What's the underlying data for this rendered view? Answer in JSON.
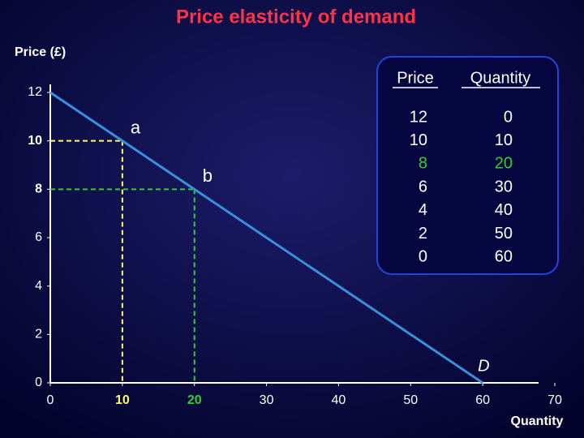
{
  "chart_data": {
    "type": "line",
    "title": "Price elasticity of demand",
    "y_label": "Price (£)",
    "x_label": "Quantity",
    "x": [
      0,
      10,
      20,
      30,
      40,
      50,
      60
    ],
    "values": [
      12,
      10,
      8,
      6,
      4,
      2,
      0
    ],
    "color": "#3a8fdc",
    "curve_label": "D",
    "xlim": [
      0,
      70
    ],
    "ylim": [
      0,
      12
    ],
    "xticks": [
      0,
      10,
      20,
      30,
      40,
      50,
      60,
      70
    ],
    "yticks": [
      0,
      2,
      4,
      6,
      8,
      10,
      12
    ],
    "points": [
      {
        "label": "a",
        "x": 10,
        "y": 10,
        "color": "#ffff66"
      },
      {
        "label": "b",
        "x": 20,
        "y": 8,
        "color": "#33cc33"
      }
    ],
    "columns": [
      "Price",
      "Quantity"
    ],
    "highlight_row": 2,
    "highlight_color": "#33cc33"
  }
}
